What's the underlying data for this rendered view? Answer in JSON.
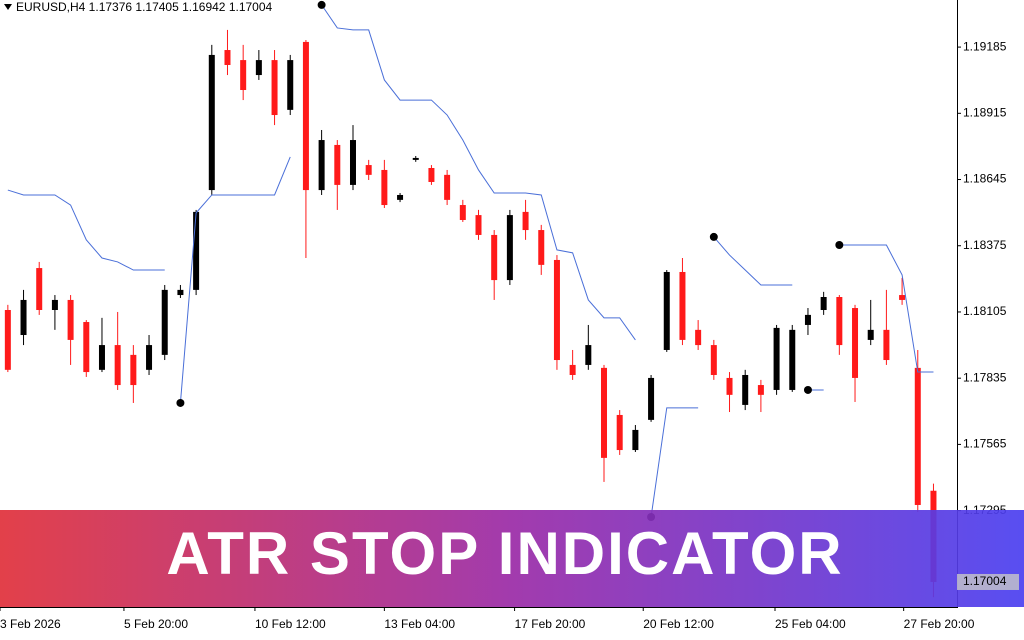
{
  "chart_data": {
    "type": "candlestick",
    "title": "EURUSD,H4  1.17376 1.17405 1.16942 1.17004",
    "annotation": "ATR STOP INDICATOR",
    "up_color": "#000000",
    "down_color": "#ff1a1a",
    "stop_color": "#4a6fd8",
    "signal_color": "#000000",
    "ylim": [
      1.16902,
      1.19377
    ],
    "yticks": [
      1.19185,
      1.18915,
      1.18645,
      1.18375,
      1.18105,
      1.17835,
      1.17565,
      1.17295
    ],
    "xlim": [
      -0.5,
      60.5
    ],
    "xticks": [
      {
        "value": -0.5,
        "label": "3 Feb 2026"
      },
      {
        "value": 7.4,
        "label": "5 Feb 20:00"
      },
      {
        "value": 15.75,
        "label": "10 Feb 12:00"
      },
      {
        "value": 24.0,
        "label": "13 Feb 04:00"
      },
      {
        "value": 32.3,
        "label": "17 Feb 20:00"
      },
      {
        "value": 40.5,
        "label": "20 Feb 12:00"
      },
      {
        "value": 48.9,
        "label": "25 Feb 04:00"
      },
      {
        "value": 57.1,
        "label": "27 Feb 20:00"
      }
    ],
    "open": [
      1.18113,
      1.18011,
      1.18284,
      1.18113,
      1.18154,
      1.18064,
      1.17869,
      1.1797,
      1.1793,
      1.17869,
      1.1793,
      1.18174,
      1.18195,
      1.18602,
      1.19173,
      1.19132,
      1.19071,
      1.19132,
      1.18929,
      1.19206,
      1.18602,
      1.18786,
      1.18623,
      1.18704,
      1.18684,
      1.18562,
      1.18725,
      1.18692,
      1.18664,
      1.18541,
      1.185,
      1.18419,
      1.18235,
      1.18513,
      1.18439,
      1.18317,
      1.17889,
      1.17889,
      1.17877,
      1.17685,
      1.17542,
      1.17665,
      1.1795,
      1.18268,
      1.18032,
      1.1797,
      1.17836,
      1.17726,
      1.17807,
      1.17787,
      1.17787,
      1.18052,
      1.18113,
      1.18166,
      1.18121,
      1.17991,
      1.18032,
      1.18174,
      1.17877,
      1.17376
    ],
    "high": [
      1.18134,
      1.18195,
      1.18309,
      1.18174,
      1.18174,
      1.18072,
      1.18081,
      1.18105,
      1.1797,
      1.18011,
      1.18215,
      1.18215,
      1.18521,
      1.19194,
      1.19255,
      1.19194,
      1.19173,
      1.19173,
      1.19153,
      1.19214,
      1.18847,
      1.18806,
      1.18867,
      1.18725,
      1.18725,
      1.1859,
      1.18741,
      1.18704,
      1.18684,
      1.18562,
      1.18521,
      1.18439,
      1.18521,
      1.18562,
      1.1846,
      1.18337,
      1.1795,
      1.18052,
      1.17889,
      1.17705,
      1.17644,
      1.17848,
      1.18276,
      1.18325,
      1.18072,
      1.17991,
      1.1786,
      1.17869,
      1.17828,
      1.18052,
      1.18052,
      1.18121,
      1.18187,
      1.18174,
      1.18134,
      1.18154,
      1.18195,
      1.18244,
      1.1795,
      1.17405
    ],
    "low": [
      1.1786,
      1.1797,
      1.18093,
      1.18032,
      1.17889,
      1.1784,
      1.1786,
      1.17787,
      1.17734,
      1.17848,
      1.17909,
      1.18162,
      1.18174,
      1.18582,
      1.19071,
      1.18969,
      1.19051,
      1.18867,
      1.18908,
      1.18325,
      1.18582,
      1.18521,
      1.18602,
      1.18643,
      1.18529,
      1.18553,
      1.18717,
      1.18623,
      1.18541,
      1.18472,
      1.18399,
      1.18154,
      1.18215,
      1.18399,
      1.18256,
      1.17869,
      1.17828,
      1.17869,
      1.17412,
      1.17522,
      1.17534,
      1.17657,
      1.17942,
      1.1797,
      1.1795,
      1.17828,
      1.17697,
      1.17705,
      1.17697,
      1.17767,
      1.17779,
      1.18011,
      1.18093,
      1.1793,
      1.17738,
      1.1797,
      1.17889,
      1.18134,
      1.1729,
      1.16942
    ],
    "close": [
      1.17869,
      1.18154,
      1.18113,
      1.18154,
      1.17991,
      1.1786,
      1.1797,
      1.17807,
      1.17807,
      1.1797,
      1.18195,
      1.18195,
      1.18513,
      1.19153,
      1.19112,
      1.1901,
      1.19132,
      1.18908,
      1.19132,
      1.18602,
      1.18806,
      1.18623,
      1.18806,
      1.18664,
      1.18541,
      1.18582,
      1.18733,
      1.18635,
      1.18562,
      1.1848,
      1.18419,
      1.18235,
      1.185,
      1.18439,
      1.18297,
      1.17909,
      1.17848,
      1.1797,
      1.1751,
      1.17542,
      1.17624,
      1.17836,
      1.18268,
      1.17991,
      1.1797,
      1.17848,
      1.17767,
      1.17848,
      1.17767,
      1.1804,
      1.18032,
      1.18093,
      1.18166,
      1.1797,
      1.17836,
      1.18032,
      1.17909,
      1.18154,
      1.17318,
      1.17004
    ],
    "stop_upper": [
      1.18602,
      1.18582,
      1.18582,
      1.18582,
      1.18541,
      1.18399,
      1.18325,
      1.18309,
      1.18276,
      1.18276,
      1.18276,
      null,
      null,
      null,
      null,
      null,
      null,
      null,
      null,
      null,
      1.19357,
      1.19263,
      1.19255,
      1.19255,
      1.19051,
      1.18969,
      1.18969,
      1.18969,
      1.18908,
      1.18806,
      1.18684,
      1.1859,
      1.1859,
      1.1859,
      1.18582,
      1.18358,
      1.18346,
      1.18154,
      1.18081,
      1.18081,
      1.17991,
      null,
      null,
      null,
      null,
      1.18411,
      1.18337,
      1.18276,
      1.18215,
      1.18215,
      1.18215,
      null,
      null,
      1.18378,
      1.18378,
      1.18378,
      1.18378,
      1.18256,
      1.1786,
      1.1786
    ],
    "stop_lower": [
      null,
      null,
      null,
      null,
      null,
      null,
      null,
      null,
      null,
      null,
      null,
      1.17734,
      1.18509,
      1.18582,
      1.18582,
      1.18582,
      1.18582,
      1.18582,
      1.18737,
      null,
      null,
      null,
      null,
      null,
      null,
      null,
      null,
      null,
      null,
      null,
      null,
      null,
      null,
      null,
      null,
      null,
      null,
      null,
      null,
      null,
      null,
      1.17269,
      1.17714,
      1.17714,
      1.17714,
      null,
      null,
      null,
      null,
      null,
      null,
      1.17787,
      1.17787,
      null,
      null,
      null,
      null,
      null,
      null,
      null
    ]
  }
}
